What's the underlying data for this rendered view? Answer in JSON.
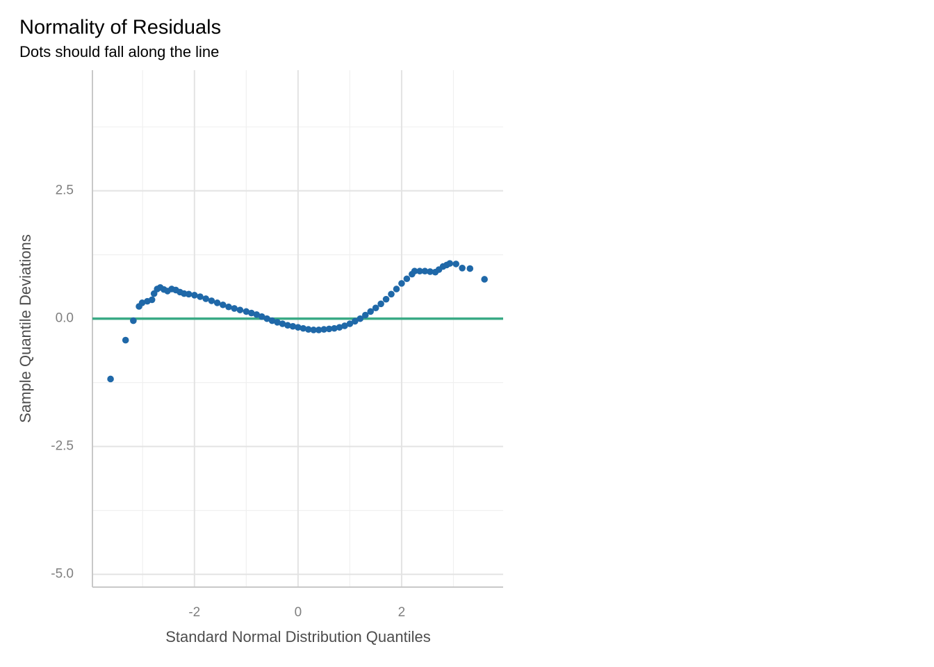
{
  "chart_data": {
    "type": "scatter",
    "title": "Normality of Residuals",
    "subtitle": "Dots should fall along the line",
    "x_label": "Standard Normal Distribution Quantiles",
    "y_label": "Sample Quantile Deviations",
    "color": "#1f68a8",
    "x": [
      -3.62,
      -3.33,
      -3.18,
      -3.07,
      -3.01,
      -2.91,
      -2.82,
      -2.78,
      -2.72,
      -2.66,
      -2.59,
      -2.52,
      -2.44,
      -2.36,
      -2.28,
      -2.2,
      -2.11,
      -2.0,
      -1.89,
      -1.78,
      -1.67,
      -1.56,
      -1.45,
      -1.34,
      -1.23,
      -1.12,
      -1.0,
      -0.9,
      -0.8,
      -0.7,
      -0.6,
      -0.5,
      -0.4,
      -0.3,
      -0.2,
      -0.1,
      0.0,
      0.1,
      0.2,
      0.3,
      0.4,
      0.5,
      0.6,
      0.7,
      0.8,
      0.9,
      1.0,
      1.1,
      1.2,
      1.3,
      1.4,
      1.5,
      1.6,
      1.7,
      1.8,
      1.9,
      2.0,
      2.1,
      2.2,
      2.25,
      2.35,
      2.45,
      2.55,
      2.65,
      2.72,
      2.8,
      2.87,
      2.93,
      3.05,
      3.17,
      3.32,
      3.6
    ],
    "y": [
      -1.18,
      -0.42,
      -0.04,
      0.24,
      0.31,
      0.34,
      0.37,
      0.49,
      0.58,
      0.61,
      0.57,
      0.54,
      0.58,
      0.56,
      0.52,
      0.49,
      0.48,
      0.46,
      0.43,
      0.39,
      0.35,
      0.31,
      0.27,
      0.23,
      0.2,
      0.17,
      0.14,
      0.11,
      0.08,
      0.04,
      0.0,
      -0.04,
      -0.07,
      -0.1,
      -0.13,
      -0.15,
      -0.17,
      -0.19,
      -0.21,
      -0.22,
      -0.22,
      -0.21,
      -0.2,
      -0.19,
      -0.17,
      -0.14,
      -0.1,
      -0.05,
      0.0,
      0.07,
      0.14,
      0.21,
      0.29,
      0.38,
      0.48,
      0.58,
      0.69,
      0.78,
      0.87,
      0.93,
      0.93,
      0.93,
      0.92,
      0.91,
      0.96,
      1.02,
      1.05,
      1.08,
      1.07,
      0.99,
      0.98,
      0.77
    ],
    "reference_line": {
      "y": 0,
      "color": "#3aaa85"
    },
    "xlim": [
      -3.97,
      3.96
    ],
    "ylim": [
      -5.25,
      4.86
    ],
    "xticks": [
      -2,
      0,
      2
    ],
    "yticks": [
      {
        "value": -5,
        "label": "-5.0"
      },
      -2.5,
      {
        "value": 0,
        "label": "0.0"
      },
      2.5
    ],
    "x_minor_ticks": [
      -3,
      -1,
      1,
      3
    ],
    "y_minor_ticks": [
      -3.75,
      -1.25,
      1.25,
      3.75
    ],
    "grid": true
  }
}
